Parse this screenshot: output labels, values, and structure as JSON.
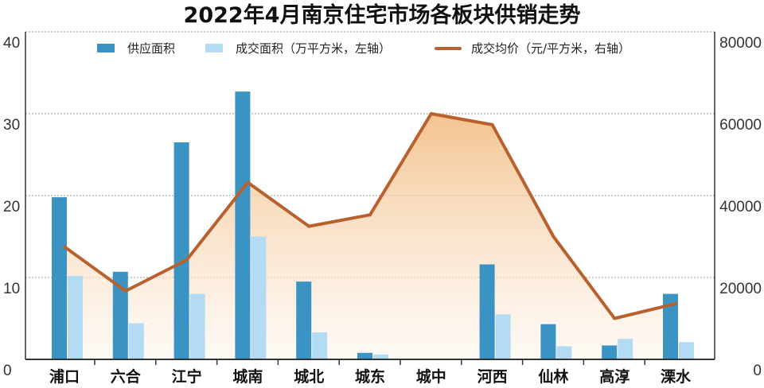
{
  "chart_data": {
    "type": "bar+line",
    "title": "2022年4月南京住宅市场各板块供销走势",
    "categories": [
      "浦口",
      "六合",
      "江宁",
      "城南",
      "城北",
      "城东",
      "城中",
      "河西",
      "仙林",
      "高淳",
      "溧水"
    ],
    "series": [
      {
        "name": "供应面积",
        "kind": "bar",
        "axis": "left",
        "color": "#3a93c3",
        "values": [
          19.8,
          10.7,
          26.5,
          32.7,
          9.5,
          0.8,
          0,
          11.6,
          4.3,
          1.7,
          8.0
        ]
      },
      {
        "name": "成交面积（万平方米，左轴）",
        "kind": "bar",
        "axis": "left",
        "color": "#b3dbf3",
        "values": [
          10.2,
          4.4,
          8.0,
          15.0,
          3.3,
          0.6,
          0,
          5.5,
          1.6,
          2.5,
          2.1
        ]
      },
      {
        "name": "成交均价（元/平方米，右轴）",
        "kind": "line",
        "axis": "right",
        "color": "#b8612f",
        "values": [
          27500,
          16700,
          24300,
          43200,
          32500,
          35300,
          60000,
          57300,
          30000,
          10000,
          13600
        ]
      }
    ],
    "left_axis": {
      "min": 0,
      "max": 40,
      "ticks": [
        "0",
        "10",
        "20",
        "30",
        "40"
      ]
    },
    "right_axis": {
      "min": 0,
      "max": 80000,
      "ticks": [
        "0",
        "20000",
        "40000",
        "60000",
        "80000"
      ]
    },
    "grid": true,
    "legend_position": "top"
  },
  "colors": {
    "area_fill_top": "#f2bd84",
    "area_fill_bottom": "#fdf4ea",
    "grid": "#9a9a9a",
    "axis": "#333333"
  }
}
